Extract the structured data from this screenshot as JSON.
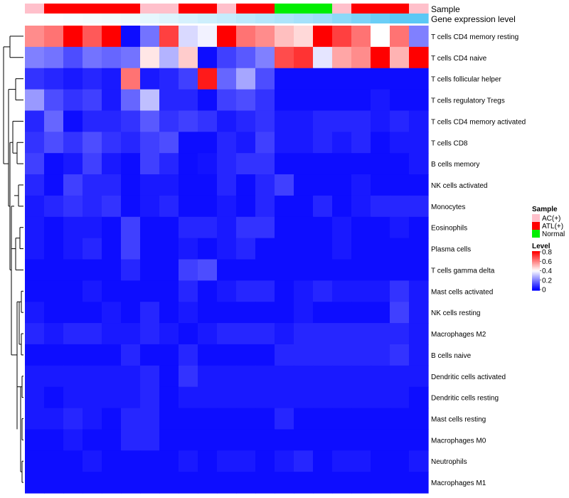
{
  "chart_data": {
    "type": "heatmap",
    "annotation_titles": {
      "sample": "Sample",
      "gene": "Gene expression level"
    },
    "sample_row": [
      "AC(+)",
      "ATL(+)",
      "ATL(+)",
      "ATL(+)",
      "ATL(+)",
      "ATL(+)",
      "AC(+)",
      "AC(+)",
      "ATL(+)",
      "ATL(+)",
      "AC(+)",
      "ATL(+)",
      "ATL(+)",
      "Normal",
      "Normal",
      "Normal",
      "AC(+)",
      "ATL(+)",
      "ATL(+)",
      "ATL(+)",
      "AC(+)"
    ],
    "gene_row": [
      0.0,
      0.02,
      0.04,
      0.06,
      0.08,
      0.1,
      0.15,
      0.2,
      0.25,
      0.3,
      0.35,
      0.4,
      0.45,
      0.5,
      0.55,
      0.6,
      0.7,
      0.8,
      0.9,
      1.0,
      1.0
    ],
    "rows": [
      "T cells CD4 memory resting",
      "T cells CD4 naive",
      "T cells follicular helper",
      "T cells regulatory  Tregs",
      "T cells CD4 memory activated",
      "T cells CD8",
      "B cells memory",
      "NK cells activated",
      "Monocytes",
      "Eosinophils",
      "Plasma cells",
      "T cells gamma delta",
      "Mast cells activated",
      "NK cells resting",
      "Macrophages M2",
      "B cells naive",
      "Dendritic cells activated",
      "Dendritic cells resting",
      "Mast cells resting",
      "Macrophages M0",
      "Neutrophils",
      "Macrophages M1"
    ],
    "values": [
      [
        0.58,
        0.62,
        0.8,
        0.66,
        0.8,
        0.02,
        0.18,
        0.7,
        0.34,
        0.38,
        0.8,
        0.62,
        0.58,
        0.5,
        0.46,
        0.8,
        0.7,
        0.62,
        0.4,
        0.62,
        0.2
      ],
      [
        0.2,
        0.18,
        0.12,
        0.18,
        0.16,
        0.18,
        0.44,
        0.28,
        0.48,
        0.02,
        0.1,
        0.14,
        0.2,
        0.68,
        0.72,
        0.36,
        0.54,
        0.58,
        0.8,
        0.52,
        0.8
      ],
      [
        0.08,
        0.06,
        0.04,
        0.06,
        0.04,
        0.62,
        0.04,
        0.06,
        0.1,
        0.76,
        0.16,
        0.26,
        0.12,
        0.02,
        0.02,
        0.02,
        0.02,
        0.02,
        0.02,
        0.02,
        0.02
      ],
      [
        0.24,
        0.12,
        0.08,
        0.1,
        0.04,
        0.16,
        0.3,
        0.06,
        0.06,
        0.02,
        0.1,
        0.12,
        0.08,
        0.02,
        0.02,
        0.02,
        0.02,
        0.02,
        0.04,
        0.02,
        0.02
      ],
      [
        0.06,
        0.16,
        0.02,
        0.06,
        0.06,
        0.08,
        0.14,
        0.08,
        0.1,
        0.08,
        0.04,
        0.06,
        0.08,
        0.04,
        0.04,
        0.06,
        0.06,
        0.06,
        0.04,
        0.06,
        0.04
      ],
      [
        0.08,
        0.12,
        0.08,
        0.12,
        0.08,
        0.06,
        0.1,
        0.12,
        0.02,
        0.02,
        0.06,
        0.04,
        0.1,
        0.04,
        0.04,
        0.06,
        0.04,
        0.06,
        0.02,
        0.04,
        0.04
      ],
      [
        0.1,
        0.02,
        0.04,
        0.1,
        0.04,
        0.02,
        0.1,
        0.06,
        0.02,
        0.03,
        0.06,
        0.08,
        0.08,
        0.02,
        0.02,
        0.02,
        0.02,
        0.02,
        0.02,
        0.02,
        0.04
      ],
      [
        0.06,
        0.02,
        0.1,
        0.06,
        0.06,
        0.02,
        0.04,
        0.04,
        0.02,
        0.02,
        0.06,
        0.02,
        0.06,
        0.1,
        0.02,
        0.02,
        0.02,
        0.04,
        0.02,
        0.02,
        0.02
      ],
      [
        0.04,
        0.06,
        0.08,
        0.06,
        0.08,
        0.02,
        0.04,
        0.06,
        0.02,
        0.02,
        0.04,
        0.02,
        0.06,
        0.02,
        0.02,
        0.06,
        0.02,
        0.04,
        0.06,
        0.06,
        0.06
      ],
      [
        0.04,
        0.02,
        0.04,
        0.04,
        0.02,
        0.1,
        0.02,
        0.02,
        0.06,
        0.06,
        0.04,
        0.08,
        0.08,
        0.02,
        0.02,
        0.02,
        0.04,
        0.02,
        0.02,
        0.04,
        0.02
      ],
      [
        0.04,
        0.02,
        0.04,
        0.06,
        0.02,
        0.1,
        0.02,
        0.02,
        0.04,
        0.02,
        0.04,
        0.06,
        0.02,
        0.02,
        0.02,
        0.02,
        0.04,
        0.02,
        0.02,
        0.02,
        0.02
      ],
      [
        0.02,
        0.02,
        0.02,
        0.02,
        0.02,
        0.06,
        0.02,
        0.02,
        0.1,
        0.12,
        0.02,
        0.02,
        0.02,
        0.02,
        0.02,
        0.02,
        0.02,
        0.02,
        0.02,
        0.02,
        0.02
      ],
      [
        0.02,
        0.02,
        0.02,
        0.04,
        0.02,
        0.02,
        0.02,
        0.02,
        0.06,
        0.02,
        0.04,
        0.06,
        0.06,
        0.02,
        0.04,
        0.06,
        0.04,
        0.04,
        0.04,
        0.08,
        0.04
      ],
      [
        0.04,
        0.02,
        0.02,
        0.02,
        0.04,
        0.02,
        0.06,
        0.02,
        0.04,
        0.02,
        0.02,
        0.02,
        0.02,
        0.02,
        0.04,
        0.02,
        0.02,
        0.02,
        0.02,
        0.1,
        0.04
      ],
      [
        0.06,
        0.04,
        0.06,
        0.06,
        0.04,
        0.04,
        0.06,
        0.04,
        0.02,
        0.04,
        0.06,
        0.06,
        0.06,
        0.04,
        0.06,
        0.06,
        0.06,
        0.06,
        0.06,
        0.06,
        0.04
      ],
      [
        0.02,
        0.02,
        0.02,
        0.02,
        0.02,
        0.06,
        0.02,
        0.02,
        0.06,
        0.02,
        0.02,
        0.02,
        0.02,
        0.06,
        0.06,
        0.06,
        0.06,
        0.06,
        0.06,
        0.08,
        0.04
      ],
      [
        0.04,
        0.04,
        0.04,
        0.04,
        0.04,
        0.04,
        0.06,
        0.02,
        0.08,
        0.04,
        0.04,
        0.04,
        0.04,
        0.04,
        0.04,
        0.04,
        0.04,
        0.04,
        0.04,
        0.04,
        0.04
      ],
      [
        0.04,
        0.02,
        0.04,
        0.04,
        0.04,
        0.04,
        0.06,
        0.02,
        0.04,
        0.04,
        0.04,
        0.04,
        0.04,
        0.04,
        0.04,
        0.04,
        0.04,
        0.04,
        0.04,
        0.04,
        0.02
      ],
      [
        0.04,
        0.04,
        0.06,
        0.04,
        0.02,
        0.06,
        0.06,
        0.02,
        0.02,
        0.02,
        0.02,
        0.02,
        0.02,
        0.06,
        0.02,
        0.02,
        0.02,
        0.02,
        0.02,
        0.02,
        0.02
      ],
      [
        0.02,
        0.02,
        0.04,
        0.02,
        0.02,
        0.06,
        0.06,
        0.02,
        0.02,
        0.02,
        0.02,
        0.02,
        0.02,
        0.02,
        0.02,
        0.02,
        0.02,
        0.02,
        0.02,
        0.02,
        0.02
      ],
      [
        0.02,
        0.02,
        0.02,
        0.04,
        0.02,
        0.02,
        0.02,
        0.02,
        0.04,
        0.02,
        0.04,
        0.04,
        0.02,
        0.04,
        0.06,
        0.02,
        0.04,
        0.04,
        0.02,
        0.02,
        0.04
      ],
      [
        0.02,
        0.02,
        0.02,
        0.02,
        0.02,
        0.02,
        0.02,
        0.02,
        0.02,
        0.02,
        0.02,
        0.02,
        0.02,
        0.02,
        0.02,
        0.02,
        0.02,
        0.02,
        0.02,
        0.02,
        0.02
      ]
    ],
    "legend": {
      "sample_title": "Sample",
      "samples": [
        {
          "label": "AC(+)",
          "color": "#ffc0cb"
        },
        {
          "label": "ATL(+)",
          "color": "#ff0000"
        },
        {
          "label": "Normal",
          "color": "#00ee00"
        }
      ],
      "level_title": "Level",
      "level_ticks": [
        "0.8",
        "0.6",
        "0.4",
        "0.2",
        "0"
      ],
      "level_range": [
        0,
        0.8
      ]
    },
    "colors": {
      "low": "#0000ff",
      "mid": "#ffffff",
      "high": "#ff0000",
      "gene_low": "#ffffff",
      "gene_high": "#5bc8f5"
    }
  }
}
